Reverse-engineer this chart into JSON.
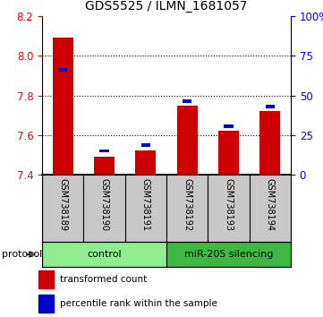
{
  "title": "GDS5525 / ILMN_1681057",
  "samples": [
    "GSM738189",
    "GSM738190",
    "GSM738191",
    "GSM738192",
    "GSM738193",
    "GSM738194"
  ],
  "red_values": [
    8.09,
    7.49,
    7.52,
    7.75,
    7.62,
    7.72
  ],
  "blue_values": [
    7.93,
    7.52,
    7.55,
    7.77,
    7.645,
    7.745
  ],
  "ylim_left": [
    7.4,
    8.2
  ],
  "ylim_right": [
    0,
    100
  ],
  "yticks_left": [
    7.4,
    7.6,
    7.8,
    8.0,
    8.2
  ],
  "yticks_right": [
    0,
    25,
    50,
    75,
    100
  ],
  "ytick_labels_right": [
    "0",
    "25",
    "50",
    "75",
    "100%"
  ],
  "groups": [
    {
      "label": "control",
      "indices": [
        0,
        1,
        2
      ],
      "color": "#90EE90"
    },
    {
      "label": "miR-205 silencing",
      "indices": [
        3,
        4,
        5
      ],
      "color": "#3CB843"
    }
  ],
  "red_color": "#CC0000",
  "blue_color": "#0000CC",
  "protocol_label": "protocol",
  "legend_red": "transformed count",
  "legend_blue": "percentile rank within the sample",
  "bg_color": "#FFFFFF",
  "base_value": 7.4,
  "grid_dotted_at": [
    7.6,
    7.8,
    8.0
  ]
}
